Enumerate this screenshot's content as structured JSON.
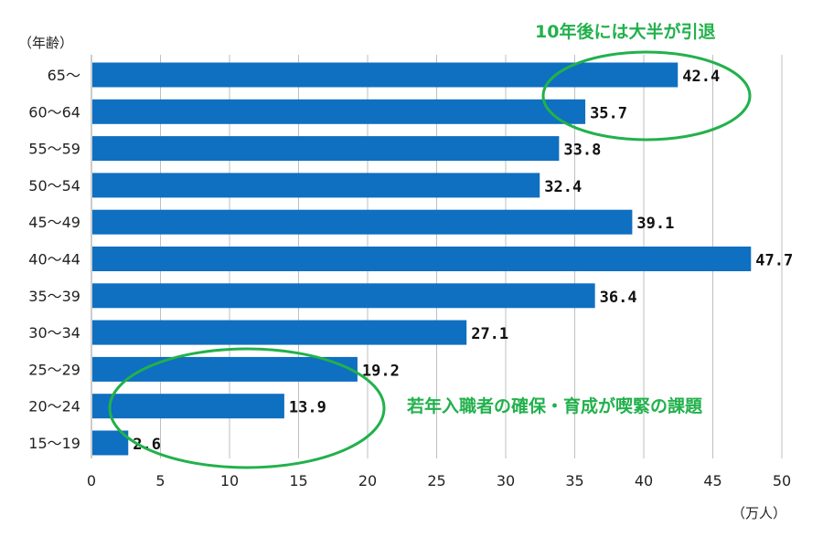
{
  "chart_data": {
    "type": "bar",
    "orientation": "horizontal",
    "categories": [
      "65～",
      "60～64",
      "55～59",
      "50～54",
      "45～49",
      "40～44",
      "35～39",
      "30～34",
      "25～29",
      "20～24",
      "15～19"
    ],
    "values": [
      42.4,
      35.7,
      33.8,
      32.4,
      39.1,
      47.7,
      36.4,
      27.1,
      19.2,
      13.9,
      2.6
    ],
    "value_labels": [
      "42.4",
      "35.7",
      "33.8",
      "32.4",
      "39.1",
      "47.7",
      "36.4",
      "27.1",
      "19.2",
      "13.9",
      "2.6"
    ],
    "xlim": [
      0,
      50
    ],
    "xticks": [
      0,
      5,
      10,
      15,
      20,
      25,
      30,
      35,
      40,
      45,
      50
    ],
    "xlabel": "（万人）",
    "ylabel": "（年齢）",
    "grid": "vertical",
    "annotations": [
      "10年後には大半が引退",
      "若年入職者の確保・育成が喫緊の課題"
    ]
  },
  "colors": {
    "bar": "#0f6fc1",
    "annotation": "#22b14c",
    "grid": "#bfbfbf"
  }
}
